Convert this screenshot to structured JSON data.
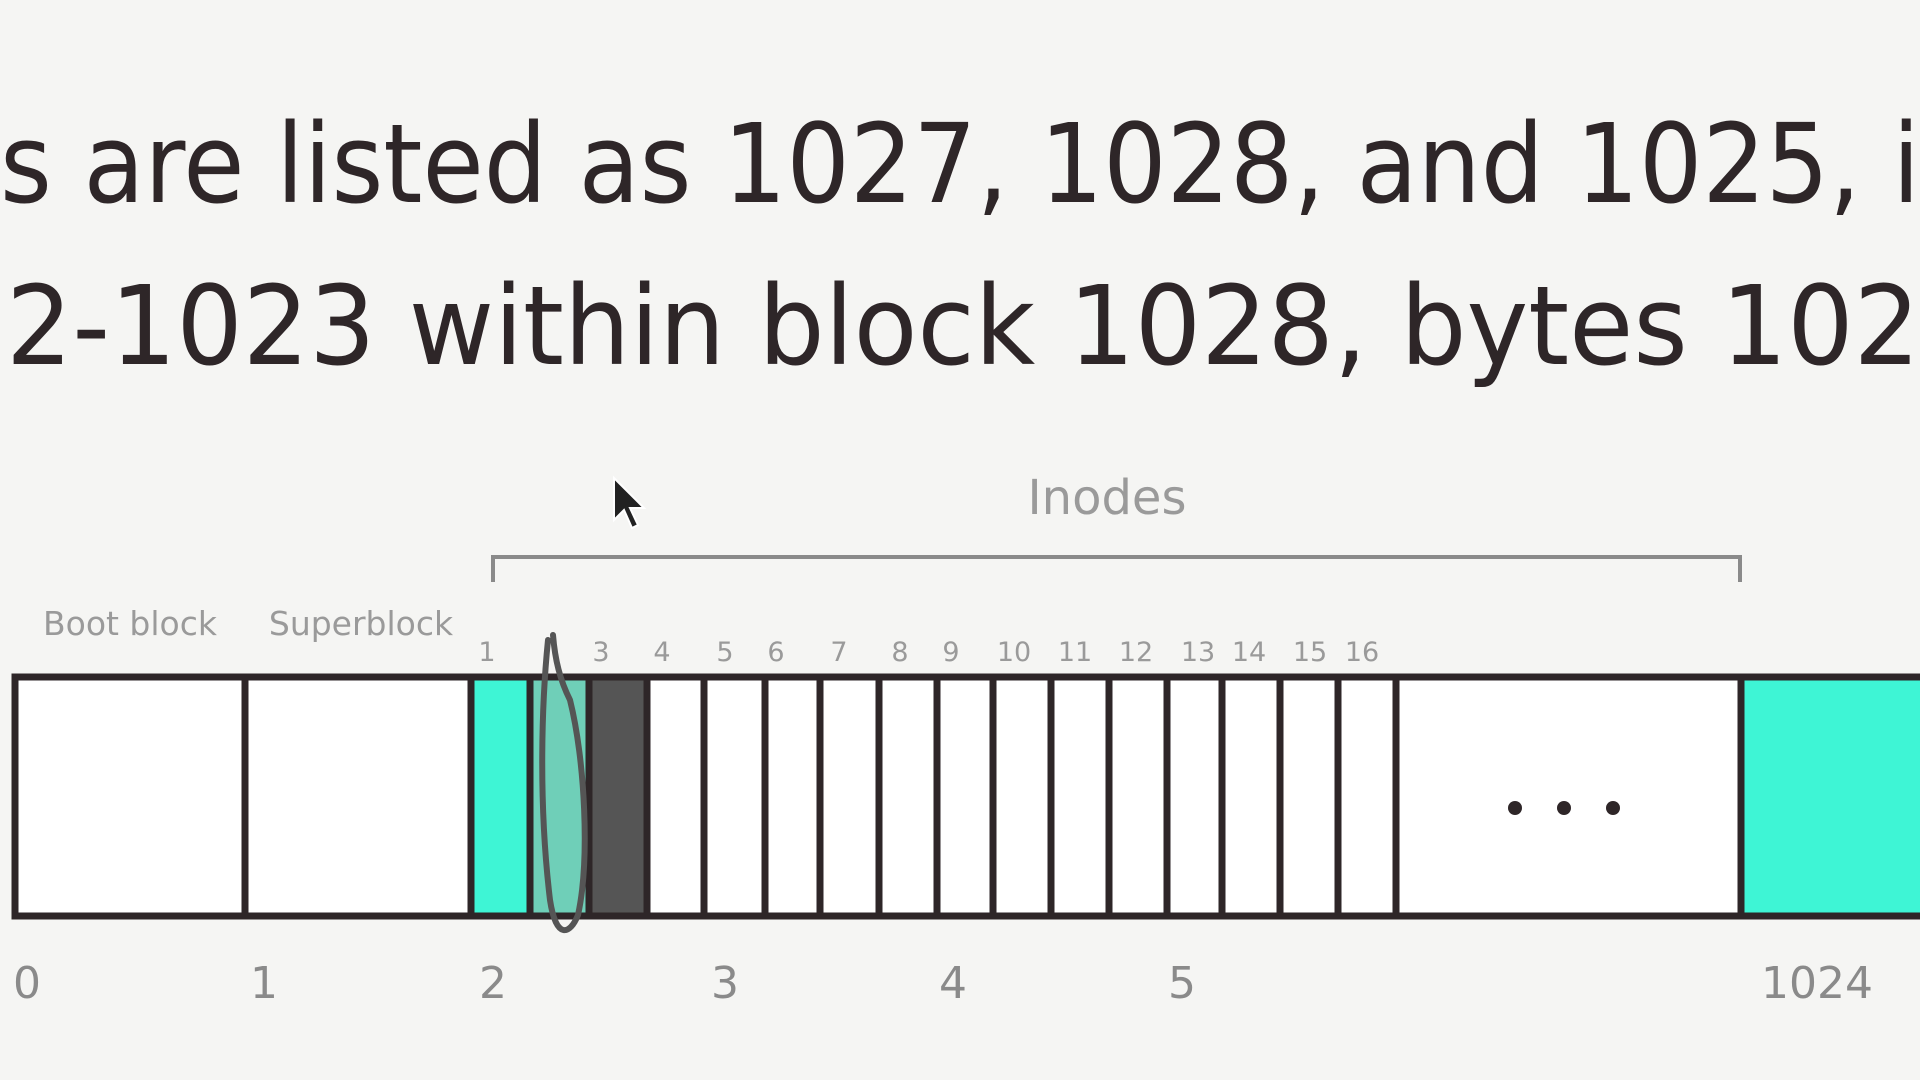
{
  "text": {
    "lines": [
      "s are listed as 1027, 1028, and 1025, i",
      "2-1023 within block 1028, bytes 102"
    ]
  },
  "diagram": {
    "bracket_label": "Inodes",
    "region_labels": [
      "Boot block",
      "Superblock"
    ],
    "inode_numbers": [
      "1",
      "3",
      "4",
      "5",
      "6",
      "7",
      "8",
      "9",
      "10",
      "11",
      "12",
      "13",
      "14",
      "15",
      "16"
    ],
    "block_numbers": [
      "0",
      "1",
      "2",
      "3",
      "4",
      "5",
      "1024"
    ]
  }
}
